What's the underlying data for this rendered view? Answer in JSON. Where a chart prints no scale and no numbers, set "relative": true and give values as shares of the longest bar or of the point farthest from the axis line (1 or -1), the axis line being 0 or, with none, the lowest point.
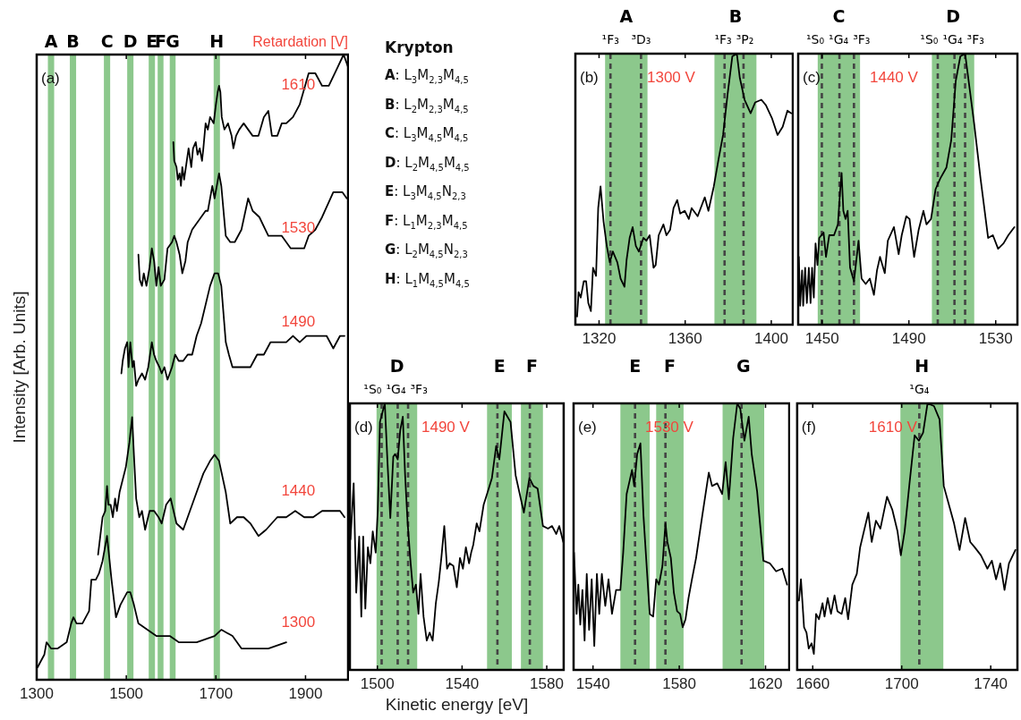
{
  "chart_data": [
    {
      "type": "line",
      "relative": true,
      "ylabel": "Intensity [Arb. Units]",
      "legend_title": "Retardation [V]",
      "xlim": [
        1300,
        1995
      ],
      "xticks": [
        1300,
        1500,
        1700,
        1900
      ],
      "series": [
        {
          "name": "1300",
          "color": "#000000",
          "x": [
            1302,
            1317,
            1322,
            1332,
            1347,
            1367,
            1377,
            1382,
            1389,
            1402,
            1417,
            1422,
            1432,
            1439,
            1447,
            1457,
            1467,
            1477,
            1487,
            1502,
            1509,
            1517,
            1527,
            1547,
            1567,
            1597,
            1617,
            1657,
            1697,
            1712,
            1737,
            1757,
            1787,
            1817,
            1857
          ],
          "values": [
            0.02,
            0.04,
            0.06,
            0.05,
            0.05,
            0.06,
            0.09,
            0.1,
            0.09,
            0.09,
            0.11,
            0.16,
            0.16,
            0.17,
            0.19,
            0.23,
            0.16,
            0.1,
            0.12,
            0.14,
            0.14,
            0.12,
            0.09,
            0.08,
            0.07,
            0.07,
            0.06,
            0.06,
            0.07,
            0.08,
            0.07,
            0.05,
            0.05,
            0.05,
            0.06
          ]
        },
        {
          "name": "1440",
          "color": "#000000",
          "x": [
            1437,
            1442,
            1447,
            1453,
            1457,
            1460,
            1465,
            1470,
            1475,
            1479,
            1485,
            1492,
            1499,
            1507,
            1513,
            1517,
            1522,
            1529,
            1535,
            1542,
            1552,
            1562,
            1572,
            1579,
            1589,
            1599,
            1612,
            1627,
            1642,
            1657,
            1672,
            1687,
            1697,
            1707,
            1722,
            1732,
            1747,
            1762,
            1777,
            1795,
            1812,
            1837,
            1857,
            1877,
            1897,
            1917,
            1937,
            1957,
            1977,
            1987
          ],
          "values": [
            0.2,
            0.23,
            0.26,
            0.27,
            0.31,
            0.28,
            0.28,
            0.26,
            0.29,
            0.27,
            0.3,
            0.32,
            0.34,
            0.38,
            0.42,
            0.36,
            0.29,
            0.26,
            0.27,
            0.24,
            0.27,
            0.27,
            0.26,
            0.25,
            0.28,
            0.29,
            0.25,
            0.24,
            0.27,
            0.3,
            0.33,
            0.35,
            0.36,
            0.35,
            0.3,
            0.25,
            0.26,
            0.26,
            0.25,
            0.23,
            0.24,
            0.26,
            0.26,
            0.27,
            0.26,
            0.26,
            0.27,
            0.27,
            0.27,
            0.26
          ]
        },
        {
          "name": "1490",
          "color": "#000000",
          "x": [
            1489,
            1492,
            1497,
            1502,
            1505,
            1509,
            1514,
            1517,
            1522,
            1527,
            1535,
            1542,
            1549,
            1557,
            1562,
            1567,
            1574,
            1579,
            1585,
            1592,
            1602,
            1609,
            1617,
            1627,
            1637,
            1647,
            1657,
            1667,
            1677,
            1687,
            1697,
            1705,
            1712,
            1722,
            1729,
            1737,
            1747,
            1762,
            1777,
            1792,
            1807,
            1822,
            1842,
            1857,
            1872,
            1887,
            1902,
            1917,
            1932,
            1947,
            1962,
            1977,
            1987
          ],
          "values": [
            0.49,
            0.51,
            0.53,
            0.54,
            0.5,
            0.54,
            0.5,
            0.51,
            0.47,
            0.48,
            0.49,
            0.48,
            0.5,
            0.54,
            0.52,
            0.51,
            0.5,
            0.49,
            0.5,
            0.48,
            0.5,
            0.52,
            0.51,
            0.51,
            0.52,
            0.52,
            0.55,
            0.57,
            0.6,
            0.63,
            0.65,
            0.65,
            0.63,
            0.54,
            0.52,
            0.5,
            0.5,
            0.5,
            0.5,
            0.52,
            0.52,
            0.54,
            0.54,
            0.54,
            0.55,
            0.54,
            0.55,
            0.55,
            0.55,
            0.55,
            0.53,
            0.55,
            0.55
          ]
        },
        {
          "name": "1530",
          "color": "#000000",
          "x": [
            1527,
            1530,
            1535,
            1539,
            1545,
            1552,
            1557,
            1562,
            1567,
            1572,
            1577,
            1585,
            1592,
            1602,
            1607,
            1612,
            1619,
            1625,
            1632,
            1637,
            1647,
            1657,
            1667,
            1677,
            1682,
            1692,
            1697,
            1702,
            1707,
            1712,
            1722,
            1732,
            1742,
            1757,
            1772,
            1782,
            1797,
            1817,
            1832,
            1847,
            1867,
            1882,
            1897,
            1907,
            1922,
            1937,
            1962,
            1982,
            1992
          ],
          "values": [
            0.68,
            0.64,
            0.63,
            0.65,
            0.63,
            0.66,
            0.69,
            0.67,
            0.63,
            0.66,
            0.63,
            0.64,
            0.69,
            0.7,
            0.71,
            0.7,
            0.68,
            0.65,
            0.67,
            0.7,
            0.72,
            0.73,
            0.74,
            0.75,
            0.75,
            0.79,
            0.77,
            0.79,
            0.81,
            0.79,
            0.71,
            0.7,
            0.7,
            0.72,
            0.77,
            0.75,
            0.74,
            0.71,
            0.71,
            0.71,
            0.69,
            0.69,
            0.69,
            0.71,
            0.72,
            0.74,
            0.78,
            0.78,
            0.77
          ]
        },
        {
          "name": "1610",
          "color": "#000000",
          "x": [
            1605,
            1607,
            1612,
            1615,
            1619,
            1622,
            1625,
            1629,
            1635,
            1639,
            1645,
            1649,
            1655,
            1659,
            1664,
            1669,
            1672,
            1677,
            1682,
            1687,
            1695,
            1700,
            1704,
            1707,
            1710,
            1713,
            1719,
            1727,
            1735,
            1739,
            1745,
            1752,
            1762,
            1772,
            1782,
            1795,
            1807,
            1817,
            1825,
            1837,
            1847,
            1857,
            1872,
            1887,
            1899,
            1907,
            1922,
            1937,
            1952,
            1972,
            1985,
            1995
          ],
          "values": [
            0.86,
            0.83,
            0.82,
            0.8,
            0.81,
            0.79,
            0.82,
            0.8,
            0.83,
            0.85,
            0.82,
            0.85,
            0.86,
            0.84,
            0.85,
            0.83,
            0.85,
            0.89,
            0.88,
            0.9,
            0.89,
            0.92,
            0.94,
            0.95,
            0.94,
            0.9,
            0.88,
            0.89,
            0.87,
            0.85,
            0.87,
            0.88,
            0.89,
            0.88,
            0.87,
            0.87,
            0.9,
            0.91,
            0.87,
            0.87,
            0.89,
            0.89,
            0.9,
            0.92,
            0.95,
            0.97,
            0.97,
            0.95,
            0.95,
            0.98,
            1,
            0.98
          ]
        }
      ],
      "bands": [
        {
          "axis": "x",
          "from": 1325,
          "to": 1339,
          "label": "A",
          "color": "#8cc88c"
        },
        {
          "axis": "x",
          "from": 1374,
          "to": 1388,
          "label": "B",
          "color": "#8cc88c"
        },
        {
          "axis": "x",
          "from": 1450,
          "to": 1464,
          "label": "C",
          "color": "#8cc88c"
        },
        {
          "axis": "x",
          "from": 1502,
          "to": 1516,
          "label": "D",
          "color": "#8cc88c"
        },
        {
          "axis": "x",
          "from": 1550,
          "to": 1564,
          "label": "E",
          "color": "#8cc88c"
        },
        {
          "axis": "x",
          "from": 1570,
          "to": 1583,
          "label": "F",
          "color": "#8cc88c"
        },
        {
          "axis": "x",
          "from": 1597,
          "to": 1610,
          "label": "G",
          "color": "#8cc88c"
        },
        {
          "axis": "x",
          "from": 1695,
          "to": 1709,
          "label": "H",
          "color": "#8cc88c"
        }
      ],
      "annotations": [
        "(a)"
      ]
    },
    {
      "type": "other",
      "title": "Krypton",
      "annotations": [
        "A: L$_{3}$M$_{2,3}$M$_{4,5}$",
        "B: L$_{2}$M$_{2,3}$M$_{4,5}$",
        "C: L$_{3}$M$_{4,5}$M$_{4,5}$",
        "D: L$_{2}$M$_{4,5}$M$_{4,5}$",
        "E: L$_{3}$M$_{4,5}$N$_{2,3}$",
        "F: L$_{1}$M$_{2,3}$M$_{4,5}$",
        "G: L$_{2}$M$_{4,5}$N$_{2,3}$",
        "H: L$_{1}$M$_{4,5}$M$_{4,5}$"
      ]
    },
    {
      "type": "line",
      "relative": true,
      "xlim": [
        1309,
        1410
      ],
      "xticks": [
        1320,
        1360,
        1400
      ],
      "series": [
        {
          "color": "#000000",
          "x": [
            1309.8,
            1310.5,
            1311.5,
            1312.9,
            1314,
            1315,
            1316.2,
            1317.2,
            1318.6,
            1319.6,
            1320.7,
            1322.1,
            1323.6,
            1325,
            1326.4,
            1328.5,
            1330,
            1331.8,
            1332.8,
            1334.2,
            1335.6,
            1337.1,
            1338.5,
            1340.6,
            1342,
            1343.5,
            1345.3,
            1346.3,
            1347.7,
            1349.9,
            1351.3,
            1353,
            1354.6,
            1356.3,
            1357.7,
            1359.8,
            1361.7,
            1363,
            1365.8,
            1369.1,
            1370.8,
            1373.3,
            1375.5,
            1377.6,
            1379.7,
            1381.9,
            1384,
            1385.4,
            1387.6,
            1390.4,
            1392.5,
            1395.4,
            1397.5,
            1400.4,
            1402.9,
            1405.3,
            1407.5,
            1409.3
          ],
          "values": [
            0.03,
            0.12,
            0.1,
            0.16,
            0.16,
            0.08,
            0.05,
            0.21,
            0.18,
            0.43,
            0.51,
            0.38,
            0.29,
            0.23,
            0.27,
            0.23,
            0.17,
            0.14,
            0.24,
            0.32,
            0.36,
            0.29,
            0.27,
            0.32,
            0.31,
            0.33,
            0.21,
            0.22,
            0.33,
            0.37,
            0.33,
            0.35,
            0.43,
            0.46,
            0.41,
            0.42,
            0.39,
            0.43,
            0.4,
            0.47,
            0.42,
            0.51,
            0.61,
            0.7,
            0.85,
            0.99,
            1,
            0.91,
            0.83,
            0.78,
            0.82,
            0.83,
            0.81,
            0.76,
            0.7,
            0.73,
            0.79,
            0.78
          ]
        }
      ],
      "bands": [
        {
          "axis": "x",
          "from": 1322.8,
          "to": 1342.5,
          "label": "A",
          "color": "#8cc88c"
        },
        {
          "axis": "x",
          "from": 1373.6,
          "to": 1393.1,
          "label": "B",
          "color": "#8cc88c"
        }
      ],
      "ref_lines": [
        {
          "axis": "x",
          "value": 1325.3,
          "label": "¹F₃",
          "color": "#444444",
          "line_style": "dashed"
        },
        {
          "axis": "x",
          "value": 1339.5,
          "label": "³D₃",
          "color": "#444444",
          "line_style": "dashed"
        },
        {
          "axis": "x",
          "value": 1378.3,
          "label": "¹F₃",
          "color": "#444444",
          "line_style": "dashed"
        },
        {
          "axis": "x",
          "value": 1387.1,
          "label": "³P₂",
          "color": "#444444",
          "line_style": "dashed"
        }
      ],
      "annotations": [
        "(b)",
        "1300 V"
      ]
    },
    {
      "type": "line",
      "relative": true,
      "xlim": [
        1439,
        1540
      ],
      "xticks": [
        1450,
        1490,
        1530
      ],
      "series": [
        {
          "color": "#000000",
          "x": [
            1439.3,
            1439.9,
            1440.8,
            1441.3,
            1442.2,
            1443,
            1443.9,
            1444.7,
            1445.4,
            1446.2,
            1447,
            1447.9,
            1448.7,
            1449.7,
            1450.7,
            1451.8,
            1453.3,
            1454.4,
            1455.5,
            1457.3,
            1458.3,
            1459,
            1459.8,
            1460.8,
            1461.8,
            1462.9,
            1464.7,
            1466.8,
            1468.2,
            1470.1,
            1472,
            1473.9,
            1475.3,
            1476.7,
            1478.9,
            1480.3,
            1483.1,
            1485.3,
            1486.7,
            1488.8,
            1490.3,
            1492.4,
            1494.5,
            1496.7,
            1498.1,
            1500.2,
            1502.3,
            1504.5,
            1507.3,
            1509.5,
            1511.6,
            1513.7,
            1515.9,
            1518,
            1520.1,
            1523,
            1526.5,
            1528.7,
            1531.1,
            1533.6,
            1535.8,
            1538.6
          ],
          "values": [
            0.25,
            0.07,
            0.2,
            0.07,
            0.21,
            0.08,
            0.21,
            0.08,
            0.21,
            0.1,
            0.3,
            0.22,
            0.32,
            0.33,
            0.34,
            0.25,
            0.33,
            0.33,
            0.33,
            0.37,
            0.49,
            0.56,
            0.42,
            0.39,
            0.42,
            0.21,
            0.16,
            0.31,
            0.17,
            0.15,
            0.17,
            0.11,
            0.2,
            0.25,
            0.19,
            0.31,
            0.36,
            0.26,
            0.33,
            0.4,
            0.39,
            0.25,
            0.35,
            0.42,
            0.37,
            0.39,
            0.5,
            0.54,
            0.58,
            0.68,
            0.9,
            0.99,
            1,
            0.87,
            0.74,
            0.54,
            0.32,
            0.33,
            0.28,
            0.3,
            0.33,
            0.36
          ]
        }
      ],
      "bands": [
        {
          "axis": "x",
          "from": 1448,
          "to": 1467.5,
          "label": "C",
          "color": "#8cc88c"
        },
        {
          "axis": "x",
          "from": 1500.6,
          "to": 1520.1,
          "label": "D",
          "color": "#8cc88c"
        }
      ],
      "ref_lines": [
        {
          "axis": "x",
          "value": 1449.9,
          "label": "¹S₀",
          "color": "#444444",
          "line_style": "dashed"
        },
        {
          "axis": "x",
          "value": 1458,
          "label": "¹G₄",
          "color": "#444444",
          "line_style": "dashed"
        },
        {
          "axis": "x",
          "value": 1464.7,
          "label": "³F₃",
          "color": "#444444",
          "line_style": "dashed"
        },
        {
          "axis": "x",
          "value": 1503.3,
          "label": "¹S₀",
          "color": "#444444",
          "line_style": "dashed"
        },
        {
          "axis": "x",
          "value": 1511,
          "label": "¹G₄",
          "color": "#444444",
          "line_style": "dashed"
        },
        {
          "axis": "x",
          "value": 1515.9,
          "label": "³F₃",
          "color": "#444444",
          "line_style": "dashed"
        }
      ],
      "annotations": [
        "(c)",
        "1440 V"
      ]
    },
    {
      "type": "line",
      "relative": true,
      "xlabel": "Kinetic energy [eV]",
      "xlim": [
        1487,
        1588
      ],
      "xticks": [
        1500,
        1540,
        1580
      ],
      "series": [
        {
          "color": "#000000",
          "x": [
            1487.3,
            1488.8,
            1490,
            1491.4,
            1492.4,
            1493.3,
            1494.3,
            1495.5,
            1496.7,
            1497.8,
            1499.2,
            1500.2,
            1501.2,
            1502.5,
            1503.5,
            1504.7,
            1506.1,
            1507.5,
            1508.4,
            1509.6,
            1510.8,
            1512,
            1513.1,
            1514.3,
            1515.5,
            1516.9,
            1518.2,
            1519.4,
            1520.4,
            1521.8,
            1523.3,
            1524.7,
            1526.1,
            1527.6,
            1529,
            1530.2,
            1531.6,
            1532.9,
            1534.1,
            1535.9,
            1537.5,
            1539,
            1540.4,
            1541.8,
            1543.3,
            1544.3,
            1545.3,
            1546.9,
            1548.2,
            1550.2,
            1552.2,
            1554.1,
            1556.1,
            1557.6,
            1560,
            1562.9,
            1565.3,
            1567.8,
            1569.2,
            1571.8,
            1573.7,
            1575.7,
            1578.2,
            1580.6,
            1582.5,
            1584.5,
            1585.9,
            1587.8
          ],
          "values": [
            0.49,
            0.7,
            0.29,
            0.5,
            0.2,
            0.5,
            0.23,
            0.46,
            0.4,
            0.52,
            0.44,
            0.6,
            0.93,
            0.97,
            1,
            0.79,
            0.57,
            0.8,
            0.81,
            0.79,
            0.9,
            0.95,
            0.73,
            0.55,
            0.42,
            0.29,
            0.32,
            0.21,
            0.36,
            0.2,
            0.11,
            0.14,
            0.11,
            0.25,
            0.33,
            0.42,
            0.54,
            0.38,
            0.4,
            0.39,
            0.31,
            0.42,
            0.38,
            0.46,
            0.4,
            0.44,
            0.47,
            0.55,
            0.52,
            0.62,
            0.67,
            0.72,
            0.84,
            0.79,
            0.97,
            0.93,
            0.73,
            0.64,
            0.59,
            0.72,
            0.69,
            0.68,
            0.54,
            0.53,
            0.54,
            0.51,
            0.54,
            0.48
          ]
        }
      ],
      "bands": [
        {
          "axis": "x",
          "from": 1499.6,
          "to": 1518.8,
          "label": "D",
          "color": "#8cc88c"
        },
        {
          "axis": "x",
          "from": 1551.8,
          "to": 1563.5,
          "label": "E",
          "color": "#8cc88c"
        },
        {
          "axis": "x",
          "from": 1567.8,
          "to": 1578.2,
          "label": "F",
          "color": "#8cc88c"
        }
      ],
      "ref_lines": [
        {
          "axis": "x",
          "value": 1502,
          "label": "¹S₀",
          "color": "#444444",
          "line_style": "dashed"
        },
        {
          "axis": "x",
          "value": 1509.6,
          "label": "¹G₄",
          "color": "#444444",
          "line_style": "dashed"
        },
        {
          "axis": "x",
          "value": 1514.5,
          "label": "³F₃",
          "color": "#444444",
          "line_style": "dashed"
        },
        {
          "axis": "x",
          "value": 1556.7,
          "color": "#444444",
          "line_style": "dashed"
        },
        {
          "axis": "x",
          "value": 1572,
          "color": "#444444",
          "line_style": "dashed"
        }
      ],
      "annotations": [
        "(d)",
        "1490 V"
      ]
    },
    {
      "type": "line",
      "relative": true,
      "xlim": [
        1531,
        1631
      ],
      "xticks": [
        1540,
        1580,
        1620
      ],
      "series": [
        {
          "color": "#000000",
          "x": [
            1531.2,
            1532.4,
            1533.2,
            1534.1,
            1535.1,
            1536.1,
            1537.1,
            1538.2,
            1539.4,
            1540.6,
            1541.8,
            1542.9,
            1544.1,
            1545.7,
            1547.2,
            1548.8,
            1550.7,
            1552.7,
            1554,
            1555.6,
            1557,
            1558.1,
            1559.1,
            1560.5,
            1562,
            1563.4,
            1564.8,
            1566.3,
            1567.9,
            1569.3,
            1570.6,
            1572.2,
            1573.6,
            1574.5,
            1576.1,
            1577.5,
            1579,
            1580.4,
            1581.6,
            1582.9,
            1584.3,
            1585.9,
            1587.8,
            1590.7,
            1593.7,
            1595.2,
            1597.6,
            1599.9,
            1601.5,
            1603,
            1605,
            1606.9,
            1608.3,
            1610.2,
            1612.2,
            1613.6,
            1616.1,
            1619,
            1622,
            1624.9,
            1627.8,
            1630
          ],
          "values": [
            0.44,
            0.21,
            0.32,
            0.17,
            0.3,
            0.11,
            0.36,
            0.15,
            0.34,
            0.09,
            0.36,
            0.21,
            0.36,
            0.24,
            0.34,
            0.21,
            0.3,
            0.3,
            0.44,
            0.66,
            0.71,
            0.75,
            0.69,
            0.81,
            0.85,
            0.58,
            0.4,
            0.21,
            0.2,
            0.34,
            0.32,
            0.39,
            0.55,
            0.48,
            0.42,
            0.29,
            0.22,
            0.21,
            0.16,
            0.19,
            0.27,
            0.34,
            0.42,
            0.58,
            0.74,
            0.69,
            0.7,
            0.66,
            0.78,
            0.64,
            0.87,
            1,
            0.98,
            0.86,
            0.95,
            0.81,
            0.67,
            0.41,
            0.4,
            0.37,
            0.38,
            0.32
          ]
        }
      ],
      "bands": [
        {
          "axis": "x",
          "from": 1552.7,
          "to": 1566.3,
          "label": "E",
          "color": "#8cc88c"
        },
        {
          "axis": "x",
          "from": 1569.3,
          "to": 1582,
          "label": "F",
          "color": "#8cc88c"
        },
        {
          "axis": "x",
          "from": 1600.1,
          "to": 1619.4,
          "label": "G",
          "color": "#8cc88c"
        }
      ],
      "ref_lines": [
        {
          "axis": "x",
          "value": 1559.5,
          "color": "#444444",
          "line_style": "dashed"
        },
        {
          "axis": "x",
          "value": 1573.6,
          "color": "#444444",
          "line_style": "dashed"
        },
        {
          "axis": "x",
          "value": 1608.9,
          "color": "#444444",
          "line_style": "dashed"
        }
      ],
      "annotations": [
        "(e)",
        "1530 V"
      ]
    },
    {
      "type": "line",
      "relative": true,
      "xlim": [
        1653,
        1752
      ],
      "xticks": [
        1660,
        1700,
        1740
      ],
      "series": [
        {
          "color": "#000000",
          "x": [
            1653.8,
            1654.7,
            1656.1,
            1657.2,
            1658.2,
            1659.5,
            1660.5,
            1661.5,
            1662.8,
            1664.4,
            1665.3,
            1666.7,
            1668.2,
            1669.8,
            1671.1,
            1673,
            1674.6,
            1675.9,
            1677.8,
            1679.8,
            1681.3,
            1683,
            1685,
            1686.5,
            1688.4,
            1690.4,
            1691.9,
            1693.4,
            1695.8,
            1698.1,
            1699.6,
            1701.3,
            1703.5,
            1705.8,
            1707.7,
            1709.6,
            1711.6,
            1714.5,
            1717,
            1718.9,
            1721.2,
            1723.5,
            1726,
            1728.5,
            1730.8,
            1732.8,
            1735.6,
            1738.5,
            1740.5,
            1742.4,
            1744.3,
            1746.2,
            1748.2,
            1751.1
          ],
          "values": [
            0.26,
            0.34,
            0.16,
            0.14,
            0.08,
            0.1,
            0.06,
            0.21,
            0.19,
            0.25,
            0.2,
            0.27,
            0.21,
            0.28,
            0.22,
            0.21,
            0.27,
            0.19,
            0.32,
            0.36,
            0.46,
            0.52,
            0.59,
            0.48,
            0.56,
            0.53,
            0.59,
            0.65,
            0.6,
            0.52,
            0.43,
            0.52,
            0.7,
            0.88,
            0.86,
            0.89,
            1,
            0.99,
            0.94,
            0.69,
            0.62,
            0.55,
            0.45,
            0.57,
            0.48,
            0.46,
            0.43,
            0.38,
            0.41,
            0.34,
            0.4,
            0.3,
            0.4,
            0.45
          ]
        }
      ],
      "bands": [
        {
          "axis": "x",
          "from": 1699.4,
          "to": 1718.7,
          "label": "H",
          "color": "#8cc88c"
        }
      ],
      "ref_lines": [
        {
          "axis": "x",
          "value": 1707.9,
          "label": "¹G₄",
          "color": "#444444",
          "line_style": "dashed"
        }
      ],
      "annotations": [
        "(f)",
        "1610 V"
      ]
    }
  ]
}
